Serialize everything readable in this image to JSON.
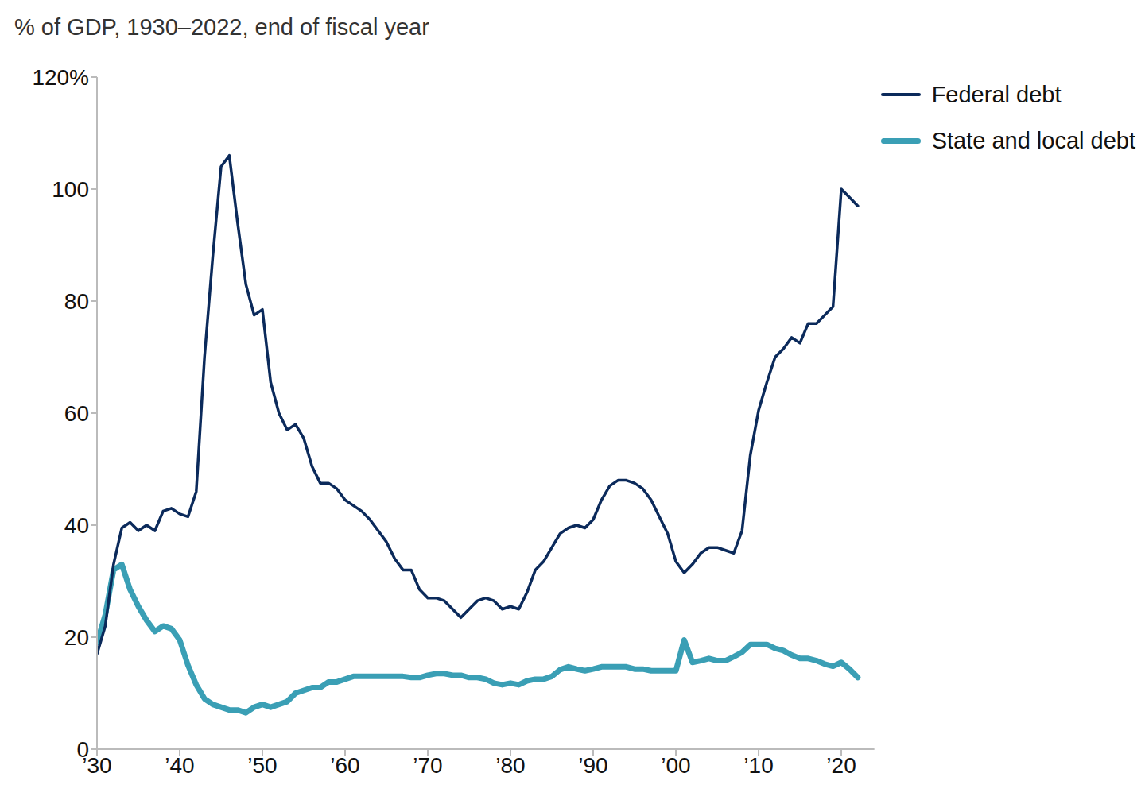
{
  "chart_data": {
    "type": "line",
    "subtitle": "% of GDP, 1930–2022, end of fiscal year",
    "x": [
      1930,
      1931,
      1932,
      1933,
      1934,
      1935,
      1936,
      1937,
      1938,
      1939,
      1940,
      1941,
      1942,
      1943,
      1944,
      1945,
      1946,
      1947,
      1948,
      1949,
      1950,
      1951,
      1952,
      1953,
      1954,
      1955,
      1956,
      1957,
      1958,
      1959,
      1960,
      1961,
      1962,
      1963,
      1964,
      1965,
      1966,
      1967,
      1968,
      1969,
      1970,
      1971,
      1972,
      1973,
      1974,
      1975,
      1976,
      1977,
      1978,
      1979,
      1980,
      1981,
      1982,
      1983,
      1984,
      1985,
      1986,
      1987,
      1988,
      1989,
      1990,
      1991,
      1992,
      1993,
      1994,
      1995,
      1996,
      1997,
      1998,
      1999,
      2000,
      2001,
      2002,
      2003,
      2004,
      2005,
      2006,
      2007,
      2008,
      2009,
      2010,
      2011,
      2012,
      2013,
      2014,
      2015,
      2016,
      2017,
      2018,
      2019,
      2020,
      2021,
      2022
    ],
    "series": [
      {
        "name": "Federal debt",
        "color": "#0b2a5b",
        "values": [
          17,
          22,
          33,
          39.5,
          40.5,
          39,
          40,
          39,
          42.5,
          43,
          42,
          41.5,
          46,
          70,
          88,
          104,
          106,
          94,
          83,
          77.5,
          78.5,
          65.5,
          60,
          57,
          58,
          55.5,
          50.5,
          47.5,
          47.5,
          46.5,
          44.5,
          43.5,
          42.5,
          41,
          39,
          37,
          34,
          32,
          32,
          28.5,
          27,
          27,
          26.5,
          25,
          23.5,
          25,
          26.5,
          27,
          26.5,
          25,
          25.5,
          25,
          28,
          32,
          33.5,
          36,
          38.5,
          39.5,
          40,
          39.5,
          41,
          44.5,
          47,
          48,
          48,
          47.5,
          46.5,
          44.5,
          41.5,
          38.5,
          33.5,
          31.5,
          33,
          35,
          36,
          36,
          35.5,
          35,
          39,
          52.5,
          60.5,
          65.5,
          70,
          71.5,
          73.5,
          72.5,
          76,
          76,
          77.5,
          79,
          100,
          98.5,
          97
        ]
      },
      {
        "name": "State and local debt",
        "color": "#3a9fb5",
        "values": [
          19,
          24,
          32,
          33,
          28.5,
          25.5,
          23,
          21,
          22,
          21.5,
          19.5,
          15,
          11.5,
          9,
          8,
          7.5,
          7,
          7,
          6.5,
          7.5,
          8,
          7.5,
          8,
          8.5,
          10,
          10.5,
          11,
          11,
          12,
          12,
          12.5,
          13,
          13,
          13,
          13,
          13,
          13,
          13,
          12.8,
          12.8,
          13.2,
          13.5,
          13.5,
          13.2,
          13.2,
          12.8,
          12.8,
          12.5,
          11.8,
          11.5,
          11.8,
          11.5,
          12.2,
          12.5,
          12.5,
          13,
          14.2,
          14.7,
          14.3,
          14,
          14.3,
          14.7,
          14.7,
          14.7,
          14.7,
          14.3,
          14.3,
          14,
          14,
          14,
          14,
          19.5,
          15.5,
          15.8,
          16.2,
          15.8,
          15.8,
          16.5,
          17.3,
          18.7,
          18.7,
          18.7,
          18,
          17.6,
          16.8,
          16.2,
          16.2,
          15.8,
          15.2,
          14.8,
          15.5,
          14.3,
          12.8
        ]
      }
    ],
    "xlim": [
      1930,
      2024
    ],
    "xticks": [
      {
        "value": 1930,
        "label": "’30"
      },
      {
        "value": 1940,
        "label": "’40"
      },
      {
        "value": 1950,
        "label": "’50"
      },
      {
        "value": 1960,
        "label": "’60"
      },
      {
        "value": 1970,
        "label": "’70"
      },
      {
        "value": 1980,
        "label": "’80"
      },
      {
        "value": 1990,
        "label": "’90"
      },
      {
        "value": 2000,
        "label": "’00"
      },
      {
        "value": 2010,
        "label": "’10"
      },
      {
        "value": 2020,
        "label": "’20"
      }
    ],
    "ylim": [
      0,
      120
    ],
    "yticks": [
      0,
      20,
      40,
      60,
      80,
      100,
      {
        "value": 120,
        "label": "120%"
      }
    ],
    "grid": false,
    "legend": "upper right"
  }
}
